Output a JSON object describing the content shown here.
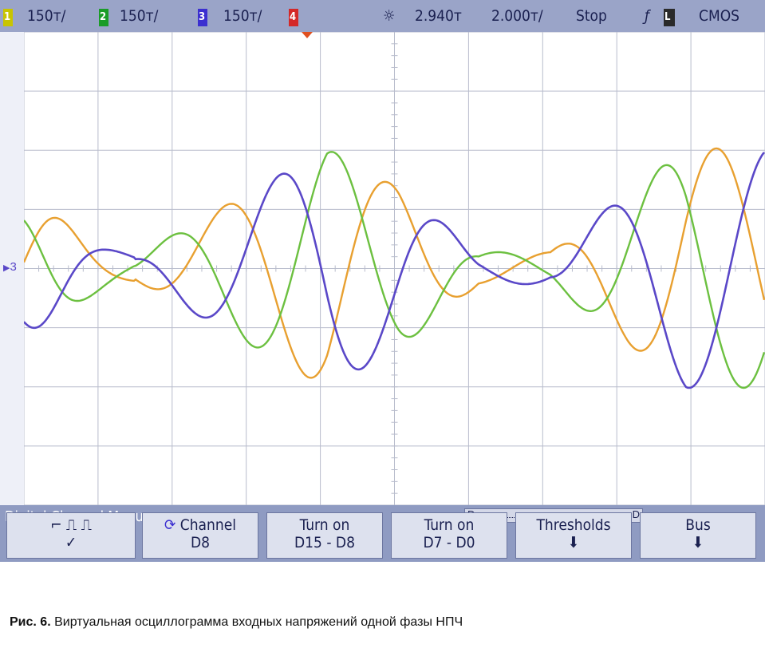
{
  "status": {
    "ch1": {
      "num": "1",
      "scale": "150т/",
      "color": "#c8c400"
    },
    "ch2": {
      "num": "2",
      "scale": "150т/",
      "color": "#1a9c28"
    },
    "ch3": {
      "num": "3",
      "scale": "150т/",
      "color": "#3b2fd0"
    },
    "ch4": {
      "num": "4",
      "color": "#d42828"
    },
    "sun_icon": "☼",
    "time_delay": "2.940т",
    "time_scale": "2.000т/",
    "run_state": "Stop",
    "trigger_icon": "ƒ",
    "trigger_ch": "L",
    "logic": "CMOS"
  },
  "plot": {
    "marker_label": "3",
    "trace_colors": {
      "orange": "#e8a030",
      "green": "#6cc040",
      "blue": "#5a48c8"
    },
    "grid_color": "#b8bccc",
    "background": "#ffffff"
  },
  "menu": {
    "title": "Digital Channel Menu",
    "scroll_left": "D",
    "scroll_right": "D",
    "keys": [
      {
        "line1": "⌐  ⎍  ⎍",
        "line2": "✓"
      },
      {
        "line1": "Channel",
        "line2": "D8"
      },
      {
        "line1": "Turn on",
        "line2": "D15 - D8"
      },
      {
        "line1": "Turn on",
        "line2": "D7 - D0"
      },
      {
        "line1": "Thresholds",
        "line2": "⬇"
      },
      {
        "line1": "Bus",
        "line2": "⬇"
      }
    ]
  },
  "caption": {
    "label": "Рис. 6.",
    "text": " Виртуальная осциллограмма входных напряжений одной фазы НПЧ"
  }
}
